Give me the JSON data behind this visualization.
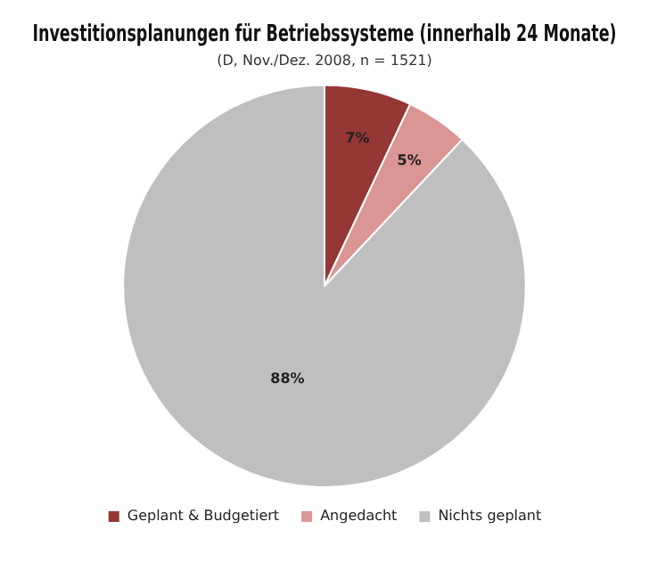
{
  "chart_data": {
    "type": "pie",
    "title": "Investitionsplanungen für Betriebssysteme (innerhalb 24 Monate)",
    "subtitle": "(D, Nov./Dez. 2008, n = 1521)",
    "categories": [
      "Geplant & Budgetiert",
      "Angedacht",
      "Nichts geplant"
    ],
    "values": [
      7,
      5,
      88
    ],
    "colors": [
      "#953735",
      "#d99694",
      "#bfbfbf"
    ],
    "value_labels": [
      "7%",
      "5%",
      "88%"
    ],
    "legend": "bottom"
  }
}
